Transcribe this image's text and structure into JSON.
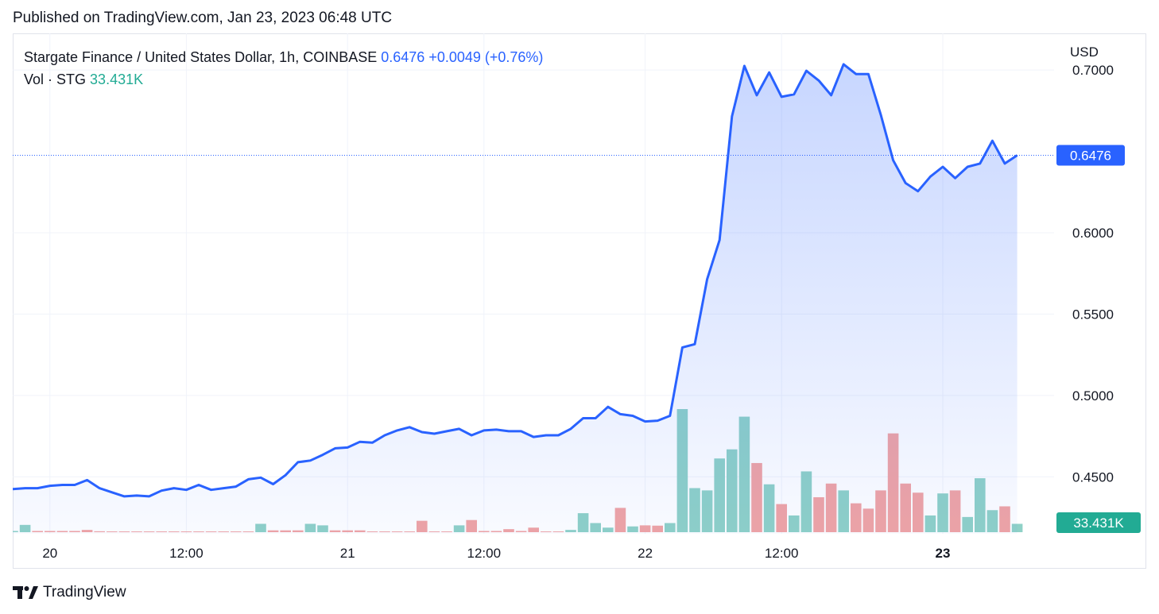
{
  "published": "Published on TradingView.com, Jan 23, 2023 06:48 UTC",
  "legend": {
    "symbol": "Stargate Finance / United States Dollar, 1h, COINBASE",
    "last": "0.6476",
    "change": "+0.0049 (+0.76%)",
    "vol_label": "Vol · STG",
    "vol_value": "33.431K"
  },
  "brand": "TradingView",
  "colors": {
    "line": "#2962ff",
    "vol_up": "#8fd1c7",
    "vol_down": "#f1a4a4",
    "price_label_bg": "#2962ff",
    "vol_label_bg": "#22ab94"
  },
  "chart_data": {
    "type": "area",
    "title": "Stargate Finance / United States Dollar, 1h, COINBASE",
    "currency_label": "USD",
    "y_ticks": [
      "0.7000",
      "0.6000",
      "0.5500",
      "0.5000",
      "0.4500"
    ],
    "x_ticks": [
      "20",
      "12:00",
      "21",
      "12:00",
      "22",
      "12:00",
      "23"
    ],
    "ylim": [
      0.415,
      0.7225
    ],
    "last_price_label": "0.6476",
    "last_volume_label": "33.431K",
    "grid": true,
    "series": [
      {
        "name": "Stargate Finance / United States Dollar",
        "values": [
          0.4425,
          0.443,
          0.443,
          0.4445,
          0.445,
          0.445,
          0.448,
          0.443,
          0.4405,
          0.438,
          0.4385,
          0.438,
          0.4415,
          0.443,
          0.442,
          0.445,
          0.442,
          0.443,
          0.444,
          0.4485,
          0.4495,
          0.4455,
          0.451,
          0.459,
          0.46,
          0.4635,
          0.4675,
          0.468,
          0.4715,
          0.471,
          0.4755,
          0.4785,
          0.4805,
          0.4775,
          0.4765,
          0.478,
          0.4795,
          0.4755,
          0.4785,
          0.479,
          0.478,
          0.478,
          0.4745,
          0.4755,
          0.4755,
          0.4795,
          0.486,
          0.486,
          0.493,
          0.4885,
          0.4875,
          0.484,
          0.4845,
          0.4875,
          0.5295,
          0.5315,
          0.5715,
          0.5955,
          0.6715,
          0.7025,
          0.6845,
          0.6985,
          0.6835,
          0.685,
          0.6995,
          0.6935,
          0.6845,
          0.7035,
          0.6975,
          0.6975,
          0.6725,
          0.6445,
          0.6305,
          0.6255,
          0.6345,
          0.6405,
          0.6335,
          0.6405,
          0.6425,
          0.6565,
          0.6425,
          0.6476
        ]
      }
    ],
    "volume": {
      "name": "Vol · STG",
      "values": [
        0.8,
        4.8,
        0.8,
        0.8,
        0.8,
        0.8,
        1.5,
        0.6,
        0.5,
        0.5,
        0.5,
        0.5,
        0.5,
        0.5,
        0.5,
        0.5,
        0.5,
        0.5,
        0.5,
        0.5,
        5.5,
        1.2,
        1.2,
        1.2,
        5.5,
        4.5,
        1.2,
        1.2,
        1.2,
        0.5,
        0.5,
        0.5,
        0.5,
        7.5,
        0.5,
        0.5,
        4.5,
        8.0,
        0.8,
        0.8,
        2.0,
        0.8,
        3.0,
        0.5,
        0.5,
        1.5,
        12.5,
        6.0,
        3.0,
        16.0,
        3.8,
        4.5,
        4.3,
        6.0,
        81.0,
        29.0,
        27.5,
        48.5,
        54.5,
        76.0,
        45.5,
        31.5,
        18.5,
        11.0,
        40.0,
        23.0,
        32.0,
        27.5,
        19.0,
        15.5,
        27.5,
        65.0,
        32.0,
        26.0,
        11.0,
        25.5,
        27.5,
        10.0,
        35.5,
        14.5,
        17.0,
        5.5
      ],
      "up": [
        true,
        true,
        false,
        false,
        false,
        false,
        false,
        false,
        false,
        false,
        false,
        false,
        false,
        false,
        false,
        false,
        false,
        false,
        false,
        false,
        true,
        false,
        false,
        false,
        true,
        true,
        false,
        false,
        false,
        false,
        false,
        false,
        false,
        false,
        false,
        false,
        true,
        false,
        false,
        false,
        false,
        false,
        false,
        false,
        false,
        true,
        true,
        true,
        true,
        false,
        true,
        false,
        false,
        true,
        true,
        true,
        true,
        true,
        true,
        true,
        false,
        true,
        false,
        true,
        true,
        false,
        false,
        true,
        false,
        false,
        false,
        false,
        false,
        false,
        true,
        true,
        false,
        true,
        true,
        true,
        false,
        true
      ]
    }
  }
}
